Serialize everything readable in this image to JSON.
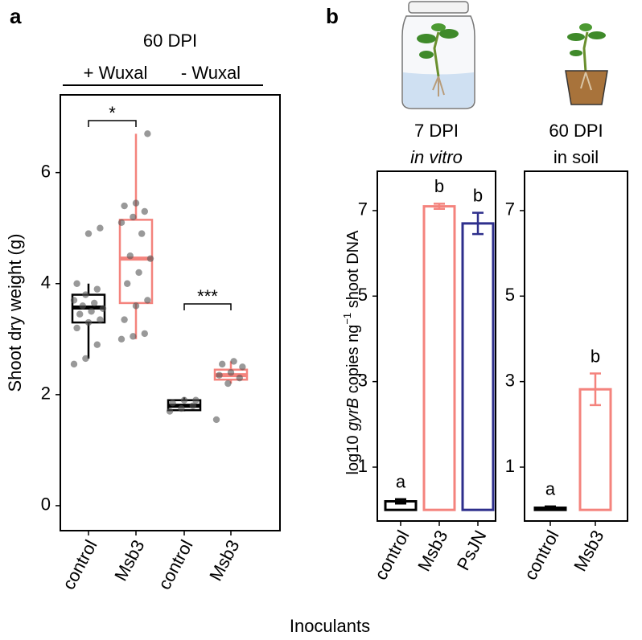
{
  "chart_data": [
    {
      "type": "box",
      "panel": "a",
      "title": "60 DPI",
      "y_label": "Shoot dry weight (g)",
      "x_label": "Inoculants",
      "group_labels": [
        "+ Wuxal",
        "- Wuxal"
      ],
      "categories": [
        "control",
        "Msb3",
        "control",
        "Msb3"
      ],
      "boxes": [
        {
          "color": "#000000",
          "min": 2.65,
          "q1": 3.3,
          "median": 3.57,
          "q3": 3.8,
          "max": 4.0,
          "points": [
            2.55,
            2.65,
            2.9,
            3.2,
            3.3,
            3.35,
            3.45,
            3.5,
            3.55,
            3.6,
            3.65,
            3.7,
            3.8,
            3.9,
            4.0,
            4.9,
            5.0
          ]
        },
        {
          "color": "#f4837d",
          "min": 3.0,
          "q1": 3.65,
          "median": 4.45,
          "q3": 5.15,
          "max": 6.7,
          "points": [
            3.0,
            3.05,
            3.1,
            3.35,
            3.6,
            3.7,
            4.0,
            4.2,
            4.45,
            4.5,
            4.9,
            5.1,
            5.2,
            5.3,
            5.4,
            5.45,
            6.7
          ]
        },
        {
          "color": "#000000",
          "min": 1.7,
          "q1": 1.72,
          "median": 1.8,
          "q3": 1.9,
          "max": 1.95,
          "points": [
            1.7,
            1.75,
            1.8,
            1.85,
            1.9,
            1.9
          ]
        },
        {
          "color": "#f4837d",
          "min": 2.2,
          "q1": 2.27,
          "median": 2.35,
          "q3": 2.45,
          "max": 2.6,
          "points": [
            1.55,
            2.2,
            2.3,
            2.35,
            2.4,
            2.5,
            2.55,
            2.6
          ]
        }
      ],
      "annotations": [
        "*",
        "***"
      ],
      "ylim": [
        -0.45,
        7.4
      ],
      "yticks": [
        0,
        2,
        4,
        6
      ]
    },
    {
      "type": "bar",
      "panel": "b",
      "title": "7 DPI",
      "subtitle": "in vitro",
      "y_label_parts": [
        "log10 ",
        "gyrB",
        " copies ng",
        "−1",
        " shoot DNA"
      ],
      "categories": [
        "control",
        "Msb3",
        "PsJN"
      ],
      "values": [
        0.2,
        7.1,
        6.7
      ],
      "errors": [
        0.05,
        0.06,
        0.25
      ],
      "colors": [
        "#000000",
        "#f4837d",
        "#2e2f8c"
      ],
      "letters": [
        "a",
        "b",
        "b"
      ],
      "ylim": [
        -0.26,
        7.92
      ],
      "yticks": [
        1,
        3,
        5,
        7
      ]
    },
    {
      "type": "bar",
      "title": "60 DPI",
      "subtitle": "in soil",
      "categories": [
        "control",
        "Msb3"
      ],
      "values": [
        0.05,
        2.82
      ],
      "errors": [
        0.03,
        0.37
      ],
      "colors": [
        "#000000",
        "#f4837d"
      ],
      "letters": [
        "a",
        "b"
      ],
      "ylim": [
        -0.26,
        7.92
      ],
      "yticks": [
        1,
        3,
        5,
        7
      ]
    }
  ]
}
